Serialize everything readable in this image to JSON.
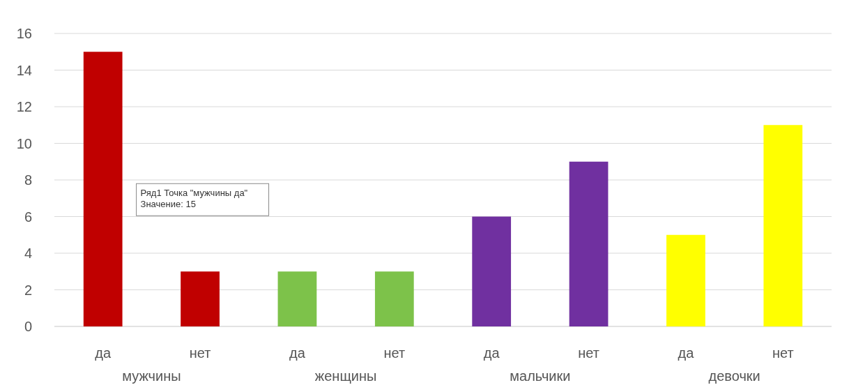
{
  "chart_data": {
    "type": "bar",
    "categories": [
      "да",
      "нет",
      "да",
      "нет",
      "да",
      "нет",
      "да",
      "нет"
    ],
    "values": [
      15,
      3,
      3,
      3,
      6,
      9,
      5,
      11
    ],
    "colors": [
      "#c00000",
      "#c00000",
      "#7dc24a",
      "#7dc24a",
      "#7030a0",
      "#7030a0",
      "#ffff00",
      "#ffff00"
    ],
    "ylim": [
      0,
      16
    ],
    "yticks": [
      0,
      2,
      4,
      6,
      8,
      10,
      12,
      14,
      16
    ],
    "grid": true,
    "annotations": [
      "мужчины",
      "женщины",
      "мальчики",
      "девочки",
      "Ряд1 Точка \"мужчины да\"\nЗначение: 15"
    ]
  }
}
